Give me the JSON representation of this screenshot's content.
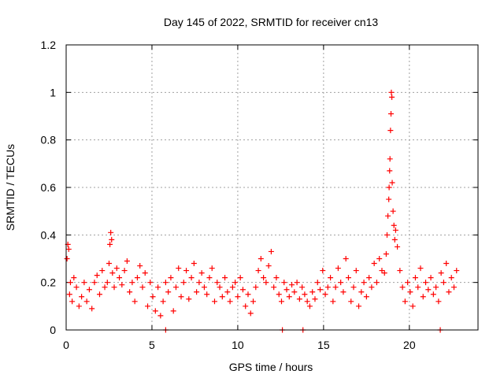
{
  "chart_data": {
    "type": "scatter",
    "title": "Day 145 of 2022, SRMTID for receiver cn13",
    "xlabel": "GPS time / hours",
    "ylabel": "SRMTID / TECUs",
    "xlim": [
      0,
      24
    ],
    "ylim": [
      0,
      1.2
    ],
    "xticks": [
      0,
      5,
      10,
      15,
      20
    ],
    "yticks": [
      0,
      0.2,
      0.4,
      0.6,
      0.8,
      1,
      1.2
    ],
    "xtick_labels": [
      "0",
      "5",
      "10",
      "15",
      "20"
    ],
    "ytick_labels": [
      "0",
      "0.2",
      "0.4",
      "0.6",
      "0.8",
      "1",
      "1.2"
    ],
    "grid": true,
    "marker": "+",
    "color": "#ff0000",
    "series": [
      {
        "name": "SRMTID",
        "x": [
          0.05,
          0.1,
          0.15,
          0.2,
          0.25,
          0.35,
          0.45,
          0.6,
          0.75,
          0.9,
          1.05,
          1.2,
          1.35,
          1.5,
          1.65,
          1.8,
          1.95,
          2.1,
          2.25,
          2.4,
          2.5,
          2.55,
          2.6,
          2.65,
          2.7,
          2.8,
          2.95,
          3.1,
          3.25,
          3.4,
          3.55,
          3.7,
          3.85,
          4.0,
          4.15,
          4.3,
          4.45,
          4.6,
          4.75,
          4.9,
          5.05,
          5.2,
          5.35,
          5.5,
          5.65,
          5.8,
          5.95,
          6.1,
          6.25,
          6.4,
          6.55,
          6.7,
          6.85,
          7.0,
          7.15,
          7.3,
          7.45,
          7.6,
          7.75,
          7.9,
          8.05,
          8.2,
          8.35,
          8.5,
          8.65,
          8.8,
          8.95,
          9.1,
          9.25,
          9.4,
          9.55,
          9.7,
          9.85,
          10.0,
          10.15,
          10.3,
          10.45,
          10.6,
          10.75,
          10.9,
          11.05,
          11.2,
          11.35,
          11.5,
          11.65,
          11.8,
          11.95,
          12.1,
          12.25,
          12.4,
          12.55,
          12.7,
          12.85,
          13.0,
          13.15,
          13.3,
          13.45,
          13.6,
          13.75,
          13.9,
          14.05,
          14.2,
          14.35,
          14.5,
          14.65,
          14.8,
          14.95,
          15.1,
          15.25,
          15.4,
          15.55,
          15.7,
          15.85,
          16.0,
          16.15,
          16.3,
          16.45,
          16.6,
          16.75,
          16.9,
          17.05,
          17.2,
          17.35,
          17.5,
          17.65,
          17.8,
          17.95,
          18.1,
          18.25,
          18.4,
          18.55,
          18.65,
          18.7,
          18.75,
          18.8,
          18.82,
          18.85,
          18.87,
          18.9,
          18.93,
          18.95,
          18.98,
          19.0,
          19.05,
          19.1,
          19.15,
          19.2,
          19.3,
          19.45,
          19.6,
          19.75,
          19.9,
          20.05,
          20.2,
          20.35,
          20.5,
          20.65,
          20.8,
          20.95,
          21.1,
          21.25,
          21.4,
          21.55,
          21.7,
          21.85,
          22.0,
          22.15,
          22.3,
          22.45,
          22.6,
          22.75,
          5.8,
          12.6,
          13.8,
          21.8
        ],
        "y": [
          0.3,
          0.36,
          0.34,
          0.15,
          0.2,
          0.12,
          0.22,
          0.18,
          0.1,
          0.14,
          0.2,
          0.12,
          0.17,
          0.09,
          0.2,
          0.23,
          0.15,
          0.25,
          0.18,
          0.2,
          0.28,
          0.36,
          0.41,
          0.38,
          0.24,
          0.18,
          0.26,
          0.22,
          0.19,
          0.25,
          0.29,
          0.16,
          0.2,
          0.12,
          0.22,
          0.27,
          0.18,
          0.24,
          0.1,
          0.2,
          0.14,
          0.08,
          0.18,
          0.06,
          0.12,
          0.2,
          0.16,
          0.22,
          0.08,
          0.18,
          0.26,
          0.14,
          0.2,
          0.25,
          0.13,
          0.22,
          0.28,
          0.16,
          0.2,
          0.24,
          0.18,
          0.15,
          0.22,
          0.26,
          0.12,
          0.2,
          0.18,
          0.14,
          0.22,
          0.16,
          0.12,
          0.18,
          0.2,
          0.14,
          0.22,
          0.17,
          0.1,
          0.15,
          0.07,
          0.12,
          0.18,
          0.25,
          0.3,
          0.22,
          0.2,
          0.27,
          0.33,
          0.18,
          0.22,
          0.15,
          0.12,
          0.2,
          0.17,
          0.14,
          0.19,
          0.16,
          0.2,
          0.13,
          0.18,
          0.15,
          0.12,
          0.1,
          0.16,
          0.13,
          0.2,
          0.17,
          0.25,
          0.15,
          0.18,
          0.22,
          0.12,
          0.18,
          0.26,
          0.2,
          0.16,
          0.3,
          0.22,
          0.12,
          0.18,
          0.25,
          0.1,
          0.16,
          0.2,
          0.14,
          0.22,
          0.18,
          0.28,
          0.2,
          0.3,
          0.25,
          0.24,
          0.32,
          0.4,
          0.48,
          0.55,
          0.6,
          0.67,
          0.72,
          0.84,
          0.91,
          1.0,
          0.98,
          0.62,
          0.5,
          0.44,
          0.38,
          0.42,
          0.35,
          0.25,
          0.18,
          0.12,
          0.2,
          0.16,
          0.1,
          0.22,
          0.18,
          0.26,
          0.14,
          0.2,
          0.17,
          0.22,
          0.15,
          0.18,
          0.12,
          0.24,
          0.2,
          0.28,
          0.16,
          0.22,
          0.18,
          0.25,
          0,
          0,
          0,
          0
        ]
      }
    ]
  }
}
